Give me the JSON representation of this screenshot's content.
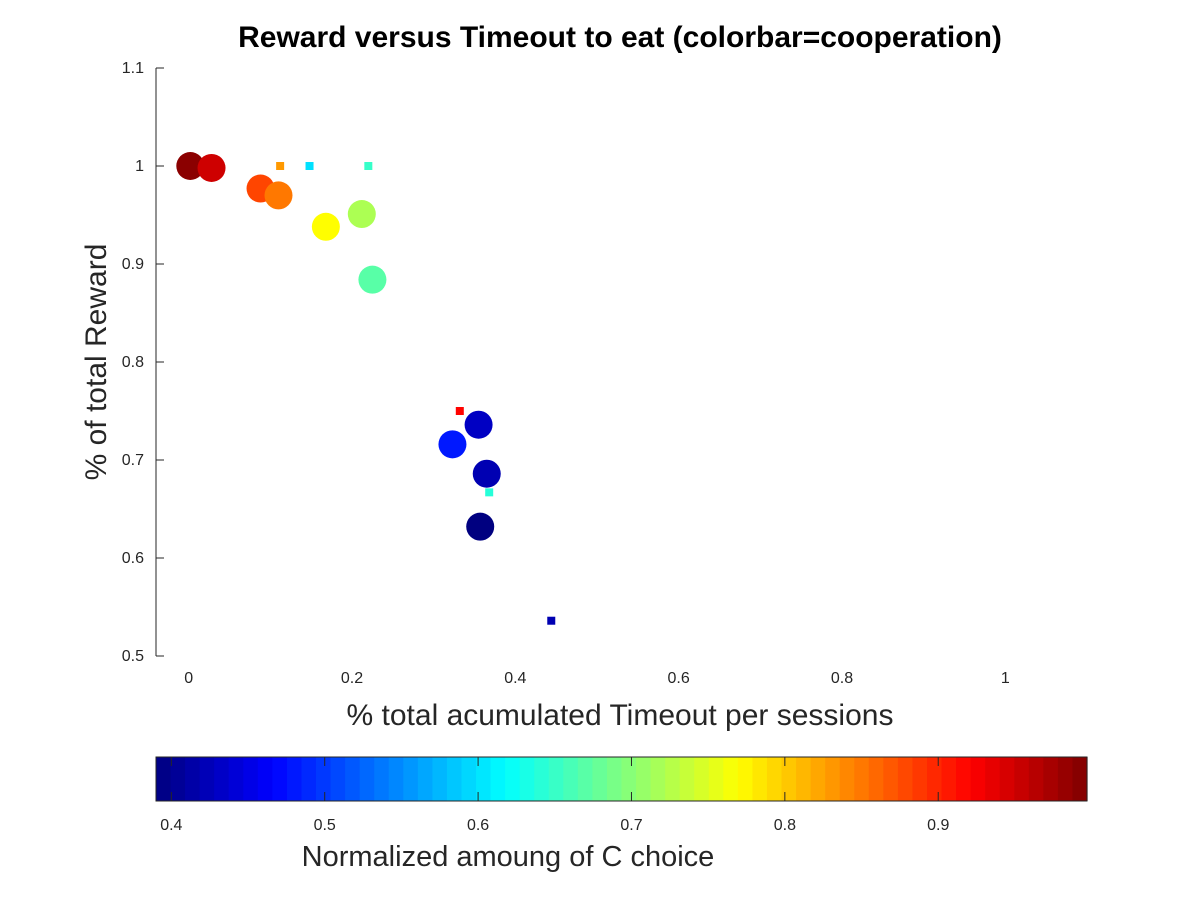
{
  "chart_data": {
    "type": "scatter",
    "title": "Reward versus Timeout to eat (colorbar=cooperation)",
    "xlabel": "% total acumulated Timeout per sessions",
    "ylabel": "% of total Reward",
    "xlim": [
      -0.04,
      1.1
    ],
    "ylim": [
      0.5,
      1.1
    ],
    "xticks": [
      "0",
      "0.2",
      "0.4",
      "0.6",
      "0.8",
      "1"
    ],
    "xtick_values": [
      0,
      0.2,
      0.4,
      0.6,
      0.8,
      1
    ],
    "yticks": [
      "0.5",
      "0.6",
      "0.7",
      "0.8",
      "0.9",
      "1",
      "1.1"
    ],
    "ytick_values": [
      0.5,
      0.6,
      0.7,
      0.8,
      0.9,
      1.0,
      1.1
    ],
    "grid": false,
    "colormap": "jet",
    "series": [
      {
        "marker": "circle",
        "points": [
          {
            "x": 0.002,
            "y": 1.0,
            "c": 0.99
          },
          {
            "x": 0.028,
            "y": 0.998,
            "c": 0.95
          },
          {
            "x": 0.088,
            "y": 0.977,
            "c": 0.88
          },
          {
            "x": 0.11,
            "y": 0.97,
            "c": 0.85
          },
          {
            "x": 0.168,
            "y": 0.938,
            "c": 0.77
          },
          {
            "x": 0.212,
            "y": 0.951,
            "c": 0.72
          },
          {
            "x": 0.225,
            "y": 0.884,
            "c": 0.67
          },
          {
            "x": 0.323,
            "y": 0.716,
            "c": 0.48
          },
          {
            "x": 0.355,
            "y": 0.736,
            "c": 0.43
          },
          {
            "x": 0.365,
            "y": 0.686,
            "c": 0.42
          },
          {
            "x": 0.357,
            "y": 0.632,
            "c": 0.39
          }
        ]
      },
      {
        "marker": "square",
        "points": [
          {
            "x": 0.112,
            "y": 1.0,
            "c": 0.83
          },
          {
            "x": 0.148,
            "y": 1.0,
            "c": 0.6
          },
          {
            "x": 0.22,
            "y": 1.0,
            "c": 0.65
          },
          {
            "x": 0.332,
            "y": 0.75,
            "c": 0.92
          },
          {
            "x": 0.368,
            "y": 0.667,
            "c": 0.64
          },
          {
            "x": 0.444,
            "y": 0.536,
            "c": 0.42
          }
        ]
      }
    ],
    "colorbar": {
      "label": "Normalized amoung of C choice",
      "range": [
        0.39,
        0.997
      ],
      "ticks": [
        "0.4",
        "0.5",
        "0.6",
        "0.7",
        "0.8",
        "0.9"
      ],
      "tick_values": [
        0.4,
        0.5,
        0.6,
        0.7,
        0.8,
        0.9
      ]
    }
  }
}
